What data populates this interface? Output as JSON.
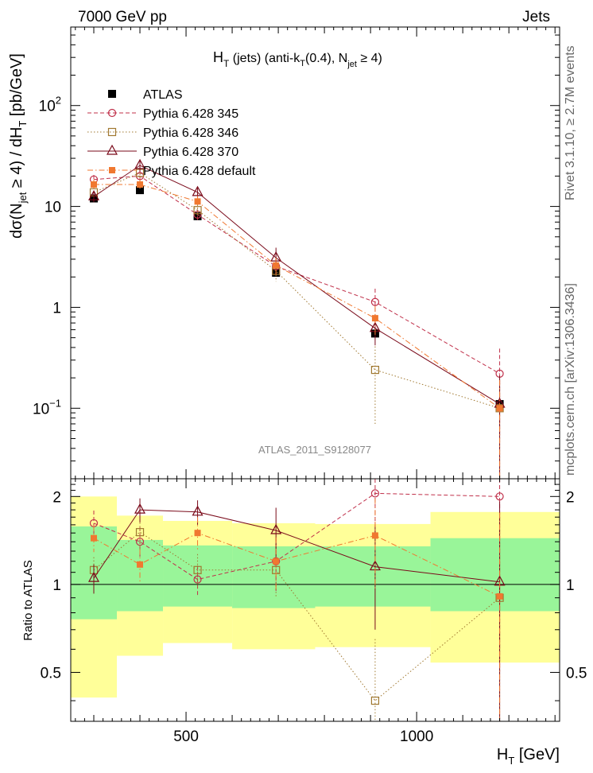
{
  "header": {
    "left": "7000 GeV pp",
    "right": "Jets"
  },
  "side_labels": {
    "rivet": "Rivet 3.1.10, ≥ 2.7M events",
    "mcplots": "mcplots.cern.ch [arXiv:1306.3436]"
  },
  "analysis_id": "ATLAS_2011_S9128077",
  "chart_data": [
    {
      "type": "line",
      "panel": "main",
      "title": "H_T (jets) (anti-k_T(0.4), N_jet ≥ 4)",
      "ylabel": "dσ(N_jet ≥ 4) / dH_T [pb/GeV]",
      "yscale": "log",
      "ylim": [
        0.02,
        600
      ],
      "xlim": [
        250,
        1310
      ],
      "yticks": [
        {
          "value": 0.1,
          "base": "10",
          "exp": "−1"
        },
        {
          "value": 1,
          "base": "1",
          "exp": ""
        },
        {
          "value": 10,
          "base": "10",
          "exp": ""
        },
        {
          "value": 100,
          "base": "10",
          "exp": "2"
        }
      ],
      "x": [
        300,
        400,
        525,
        695,
        910,
        1180
      ],
      "series": [
        {
          "name": "ATLAS",
          "color": "#000000",
          "style": "data",
          "values": [
            12,
            14.5,
            8,
            2.2,
            0.55,
            0.11
          ]
        },
        {
          "name": "Pythia 6.428 345",
          "color": "#c0304a",
          "style": "circle-dashed",
          "values": [
            18.5,
            20,
            8.3,
            2.55,
            1.13,
            0.22
          ],
          "err": [
            2,
            2.5,
            1,
            0.45,
            0.4,
            0.17
          ]
        },
        {
          "name": "Pythia 6.428 346",
          "color": "#a07830",
          "style": "square-dotted",
          "values": [
            13.8,
            21.5,
            9.2,
            2.3,
            0.24,
            0.1
          ],
          "err": [
            1.5,
            3,
            1.2,
            0.5,
            0.17,
            0.09
          ]
        },
        {
          "name": "Pythia 6.428 370",
          "color": "#7a0a1a",
          "style": "triangle-solid",
          "values": [
            12.5,
            25.5,
            13.8,
            3.1,
            0.62,
            0.11
          ],
          "err": [
            1.5,
            3.5,
            1.5,
            0.8,
            0.2,
            0.1
          ]
        },
        {
          "name": "Pythia 6.428 default",
          "color": "#f07830",
          "style": "filled-square-dashdot",
          "values": [
            16.5,
            16.5,
            11.2,
            2.6,
            0.78,
            0.1
          ],
          "err": [
            2,
            2,
            1.5,
            0.5,
            0.25,
            0.09
          ]
        }
      ]
    },
    {
      "type": "line",
      "panel": "ratio",
      "ylabel": "Ratio to ATLAS",
      "xlabel": "H_T [GeV]",
      "xlim": [
        250,
        1310
      ],
      "ylim": [
        0.34,
        2.3
      ],
      "yscale": "log",
      "xticks": [
        500,
        1000
      ],
      "yticks": [
        0.5,
        1,
        2
      ],
      "bins": [
        {
          "lo": 250,
          "hi": 350,
          "inner": [
            0.76,
            1.58
          ],
          "outer": [
            0.41,
            2.0
          ]
        },
        {
          "lo": 350,
          "hi": 450,
          "inner": [
            0.81,
            1.42
          ],
          "outer": [
            0.57,
            1.72
          ]
        },
        {
          "lo": 450,
          "hi": 600,
          "inner": [
            0.84,
            1.36
          ],
          "outer": [
            0.63,
            1.65
          ]
        },
        {
          "lo": 600,
          "hi": 780,
          "inner": [
            0.83,
            1.35
          ],
          "outer": [
            0.6,
            1.62
          ]
        },
        {
          "lo": 780,
          "hi": 1030,
          "inner": [
            0.84,
            1.35
          ],
          "outer": [
            0.61,
            1.61
          ]
        },
        {
          "lo": 1030,
          "hi": 1310,
          "inner": [
            0.81,
            1.44
          ],
          "outer": [
            0.54,
            1.77
          ]
        }
      ],
      "x": [
        300,
        400,
        525,
        695,
        910,
        1180
      ],
      "series": [
        {
          "name": "Pythia 6.428 345",
          "color": "#c0304a",
          "style": "circle-dashed",
          "values": [
            1.62,
            1.4,
            1.04,
            1.2,
            2.05,
            2.0
          ],
          "err": [
            0.17,
            0.17,
            0.12,
            0.25,
            0.6,
            1.5
          ]
        },
        {
          "name": "Pythia 6.428 346",
          "color": "#a07830",
          "style": "square-dotted",
          "values": [
            1.12,
            1.51,
            1.12,
            1.12,
            0.4,
            0.9
          ],
          "err": [
            0.12,
            0.2,
            0.15,
            0.22,
            0.25,
            0.8
          ]
        },
        {
          "name": "Pythia 6.428 370",
          "color": "#7a0a1a",
          "style": "triangle-solid",
          "values": [
            1.05,
            1.8,
            1.77,
            1.53,
            1.15,
            1.02
          ],
          "err": [
            0.12,
            0.17,
            0.17,
            0.3,
            0.45,
            0.9
          ]
        },
        {
          "name": "Pythia 6.428 default",
          "color": "#f07830",
          "style": "filled-square-dashdot",
          "values": [
            1.44,
            1.17,
            1.5,
            1.2,
            1.47,
            0.91
          ],
          "err": [
            0.15,
            0.15,
            0.2,
            0.25,
            0.5,
            0.85
          ]
        }
      ]
    }
  ]
}
